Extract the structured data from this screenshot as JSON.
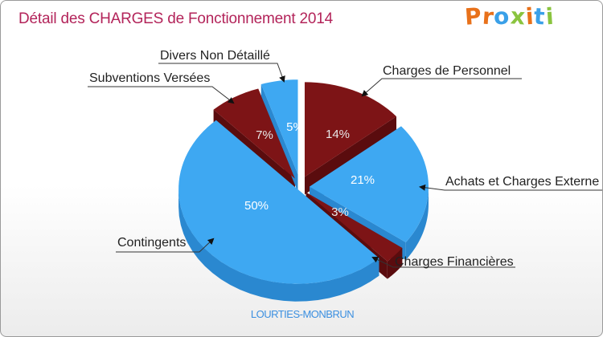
{
  "title": "Détail des CHARGES de Fonctionnement 2014",
  "logo": {
    "text": "Proxiti",
    "letters": [
      "P",
      "r",
      "o",
      "x",
      "i",
      "t",
      "i"
    ],
    "colors": [
      "#e8711a",
      "#e8711a",
      "#3aa0e8",
      "#8ac43f",
      "#e8711a",
      "#3aa0e8",
      "#8ac43f"
    ]
  },
  "subtitle": "LOURTIES-MONBRUN",
  "colors": {
    "blue": "#3ea8f2",
    "blue_side": "#2a88d0",
    "red": "#7d1416",
    "red_side": "#5a0c0e",
    "label_line": "#333333"
  },
  "chart_data": {
    "type": "pie",
    "title": "Détail des CHARGES de Fonctionnement 2014",
    "categories": [
      "Charges de Personnel",
      "Achats et Charges Externes",
      "Charges Financières",
      "Contingents",
      "Subventions Versées",
      "Divers Non Détaillé"
    ],
    "values": [
      14,
      21,
      3,
      50,
      7,
      5
    ],
    "value_labels": [
      "14%",
      "21%",
      "3%",
      "50%",
      "7%",
      "5%"
    ],
    "callout_labels": [
      "Charges de Personnel",
      "Achats et Charges Externe",
      "Charges Financières",
      "Contingents",
      "Subventions Versées",
      "Divers Non Détaillé"
    ],
    "slice_colors": [
      "red",
      "blue",
      "red",
      "blue",
      "red",
      "blue"
    ],
    "exploded": true,
    "three_d": true
  }
}
